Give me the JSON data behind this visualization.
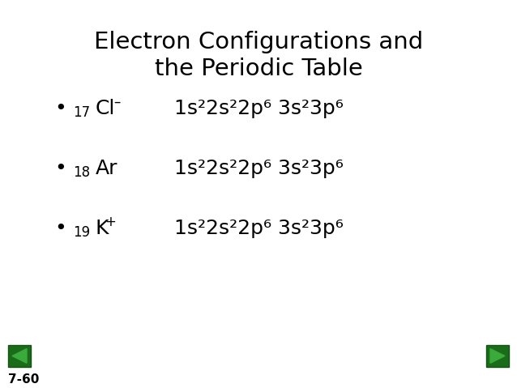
{
  "title_line1": "Electron Configurations and",
  "title_line2": "the Periodic Table",
  "background_color": "#ffffff",
  "text_color": "#000000",
  "green_color": "#1a6b1a",
  "green_dark": "#145214",
  "slide_number": "7-60",
  "items": [
    {
      "element_sub": "17",
      "element_sym": "Cl",
      "element_sup": "–",
      "config": "1s²2s²2p⁶ 3s²3p⁶"
    },
    {
      "element_sub": "18",
      "element_sym": "Ar",
      "element_sup": "",
      "config": "1s²2s²2p⁶ 3s²3p⁶"
    },
    {
      "element_sub": "19",
      "element_sym": "K",
      "element_sup": "+",
      "config": "1s²2s²2p⁶ 3s²3p⁶"
    }
  ],
  "title_fontsize": 21,
  "bullet_fontsize": 18,
  "sub_fontsize": 12,
  "config_fontsize": 18
}
